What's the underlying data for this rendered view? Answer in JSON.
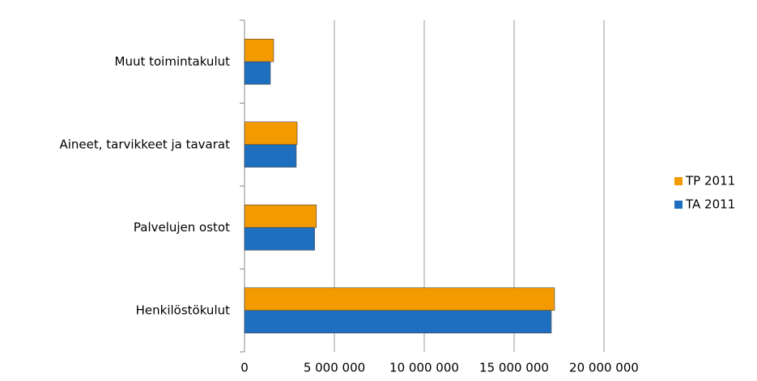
{
  "chart_data": {
    "type": "hbar",
    "categories": [
      "Muut toimintakulut",
      "Aineet, tarvikkeet ja tavarat",
      "Palvelujen ostot",
      "Henkilöstökulut"
    ],
    "series": [
      {
        "name": "TP 2011",
        "color": "#f39a00",
        "values": [
          1620000,
          2930000,
          4000000,
          17250000
        ]
      },
      {
        "name": "TA 2011",
        "color": "#1f6fc0",
        "values": [
          1440000,
          2880000,
          3900000,
          17070000
        ]
      }
    ],
    "xlim": [
      0,
      20000000
    ],
    "xticks": [
      0,
      {
        "value": 5000000,
        "label": "5 000 000"
      },
      {
        "value": 10000000,
        "label": "10 000 000"
      },
      {
        "value": 15000000,
        "label": "15 000 000"
      },
      {
        "value": 20000000,
        "label": "20 000 000"
      }
    ],
    "grid": true,
    "legend": "right"
  }
}
